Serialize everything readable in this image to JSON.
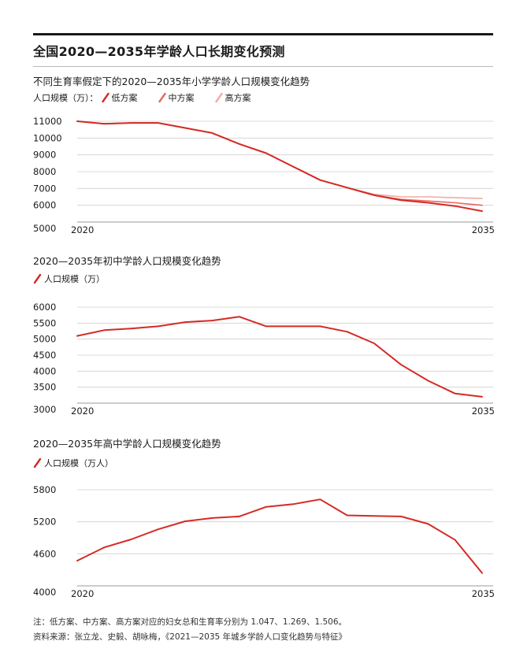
{
  "page": {
    "title": "全国2020—2035年学龄人口长期变化预测",
    "note": "注：低方案、中方案、高方案对应的妇女总和生育率分别为 1.047、1.269、1.506。",
    "source": "资料来源：张立龙、史毅、胡咏梅，《2021—2035 年城乡学龄人口变化趋势与特征》"
  },
  "colors": {
    "low": "#d42a26",
    "mid": "#e8675f",
    "high": "#f2aaa4",
    "grid": "#cfcfcf",
    "text": "#1a1a1a"
  },
  "chart_data": [
    {
      "type": "line",
      "title": "不同生育率假定下的2020—2035年小学学龄人口规模变化趋势",
      "legend_label": "人口规模（万）：",
      "x": [
        2020,
        2021,
        2022,
        2023,
        2024,
        2025,
        2026,
        2027,
        2028,
        2029,
        2030,
        2031,
        2032,
        2033,
        2034,
        2035
      ],
      "x_tick_labels": [
        "2020",
        "2035"
      ],
      "ylim": [
        5000,
        11000
      ],
      "y_ticks": [
        5000,
        6000,
        7000,
        8000,
        9000,
        10000,
        11000
      ],
      "series": [
        {
          "name": "低方案",
          "color_key": "low",
          "values": [
            11000,
            10850,
            10900,
            10900,
            10600,
            10300,
            9650,
            9100,
            8300,
            7500,
            7050,
            6600,
            6300,
            6150,
            5950,
            5650
          ]
        },
        {
          "name": "中方案",
          "color_key": "mid",
          "values": [
            11000,
            10850,
            10900,
            10900,
            10600,
            10300,
            9650,
            9100,
            8300,
            7500,
            7050,
            6600,
            6350,
            6250,
            6150,
            6000
          ]
        },
        {
          "name": "高方案",
          "color_key": "high",
          "values": [
            11000,
            10850,
            10900,
            10900,
            10600,
            10300,
            9650,
            9100,
            8300,
            7500,
            7050,
            6650,
            6500,
            6500,
            6450,
            6400
          ]
        }
      ]
    },
    {
      "type": "line",
      "title": "2020—2035年初中学龄人口规模变化趋势",
      "legend_label": "人口规模（万）",
      "x": [
        2020,
        2021,
        2022,
        2023,
        2024,
        2025,
        2026,
        2027,
        2028,
        2029,
        2030,
        2031,
        2032,
        2033,
        2034,
        2035
      ],
      "x_tick_labels": [
        "2020",
        "2035"
      ],
      "ylim": [
        3000,
        6000
      ],
      "y_ticks": [
        3000,
        3500,
        4000,
        4500,
        5000,
        5500,
        6000
      ],
      "series": [
        {
          "name": "人口规模（万）",
          "color_key": "low",
          "values": [
            5100,
            5280,
            5330,
            5400,
            5530,
            5580,
            5700,
            5400,
            5400,
            5400,
            5230,
            4870,
            4200,
            3700,
            3300,
            3200
          ]
        }
      ]
    },
    {
      "type": "line",
      "title": "2020—2035年高中学龄人口规模变化趋势",
      "legend_label": "人口规模（万人）",
      "x": [
        2020,
        2021,
        2022,
        2023,
        2024,
        2025,
        2026,
        2027,
        2028,
        2029,
        2030,
        2031,
        2032,
        2033,
        2034,
        2035
      ],
      "x_tick_labels": [
        "2020",
        "2035"
      ],
      "ylim": [
        4000,
        5800
      ],
      "y_ticks": [
        4000,
        4600,
        5200,
        5800
      ],
      "series": [
        {
          "name": "人口规模（万人）",
          "color_key": "low",
          "values": [
            4470,
            4720,
            4870,
            5060,
            5210,
            5270,
            5300,
            5480,
            5530,
            5620,
            5320,
            5310,
            5300,
            5160,
            4860,
            4240
          ]
        }
      ]
    }
  ]
}
